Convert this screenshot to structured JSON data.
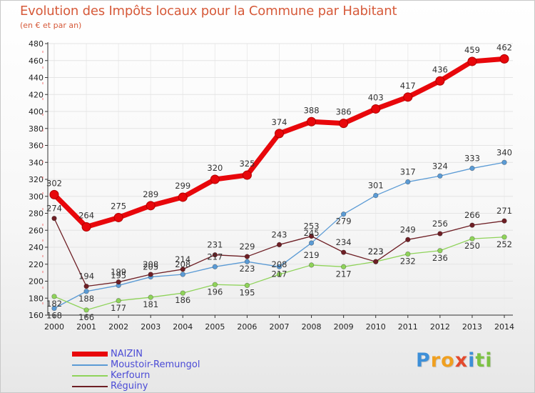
{
  "chart_data": {
    "type": "line",
    "title": "Evolution des Impôts locaux pour la Commune par Habitant",
    "subtitle": "(en € et par an)",
    "xlabel": "",
    "ylabel": "",
    "ylim": [
      160,
      480
    ],
    "yticks": [
      160,
      180,
      200,
      220,
      240,
      260,
      280,
      300,
      320,
      340,
      360,
      380,
      400,
      420,
      440,
      460,
      480
    ],
    "categories": [
      "2000",
      "2001",
      "2002",
      "2003",
      "2004",
      "2005",
      "2006",
      "2007",
      "2008",
      "2009",
      "2010",
      "2011",
      "2012",
      "2013",
      "2014"
    ],
    "series": [
      {
        "name": "NAIZIN",
        "color": "#e8070b",
        "values": [
          302,
          264,
          275,
          289,
          299,
          320,
          325,
          374,
          388,
          386,
          403,
          417,
          436,
          459,
          462
        ],
        "labels": [
          "302",
          "264",
          "275",
          "289",
          "299",
          "320",
          "325",
          "374",
          "388",
          "386",
          "403",
          "417",
          "436",
          "459",
          "462"
        ]
      },
      {
        "name": "Moustoir-Remungol",
        "color": "#5b9bd5",
        "values": [
          168,
          188,
          195,
          205,
          208,
          217,
          223,
          217,
          245,
          279,
          301,
          317,
          324,
          333,
          340
        ],
        "labels": [
          "168",
          "188",
          "195",
          "205",
          "208",
          "217",
          "223",
          "217",
          "245",
          "279",
          "301",
          "317",
          "324",
          "333",
          "340"
        ]
      },
      {
        "name": "Kerfourn",
        "color": "#8fd35a",
        "values": [
          182,
          166,
          177,
          181,
          186,
          196,
          195,
          208,
          219,
          217,
          223,
          232,
          236,
          250,
          252
        ],
        "labels": [
          "182",
          "166",
          "177",
          "181",
          "186",
          "196",
          "195",
          "208",
          "219",
          "217",
          "223",
          "232",
          "236",
          "250",
          "252"
        ]
      },
      {
        "name": "Réguiny",
        "color": "#6e1f25",
        "values": [
          274,
          194,
          199,
          208,
          214,
          231,
          229,
          243,
          253,
          234,
          223,
          249,
          256,
          266,
          271
        ],
        "labels": [
          "274",
          "194",
          "199",
          "208",
          "214",
          "231",
          "229",
          "243",
          "253",
          "234",
          "223",
          "249",
          "256",
          "266",
          "271"
        ]
      }
    ]
  },
  "logo": {
    "letters": [
      "P",
      "r",
      "o",
      "x",
      "i",
      "t",
      "i"
    ],
    "colors": [
      "#3d8fd8",
      "#f0a020",
      "#f0a020",
      "#e34a2e",
      "#3d8fd8",
      "#7cc243",
      "#7cc243"
    ]
  }
}
